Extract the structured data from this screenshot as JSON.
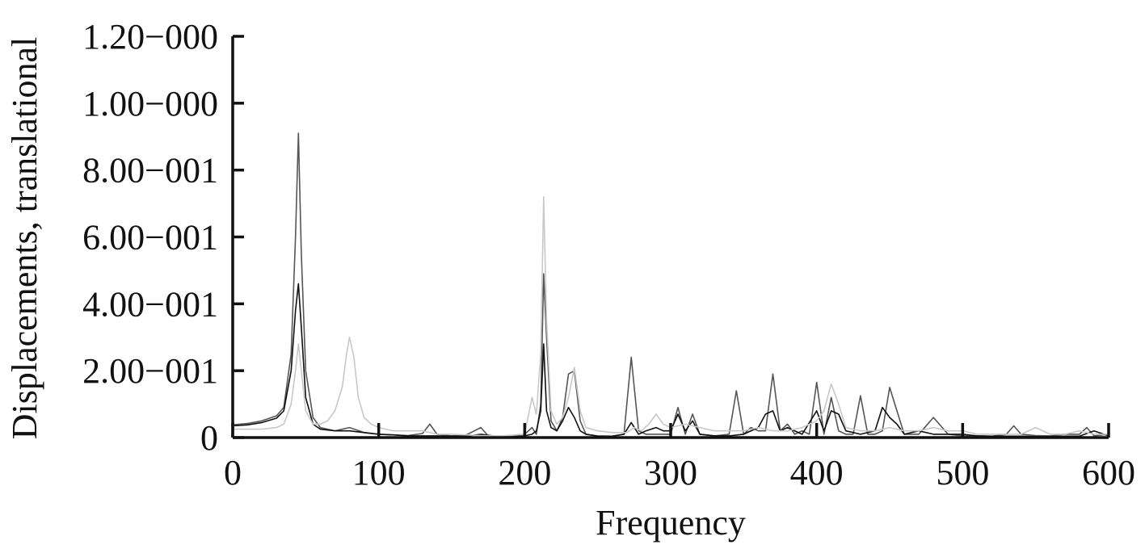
{
  "chart_data": {
    "type": "line",
    "title": "",
    "xlabel": "Frequency",
    "ylabel": "Displacements, translational",
    "xlim": [
      0,
      600
    ],
    "ylim": [
      0,
      1.2
    ],
    "grid": false,
    "x_ticks": [
      0,
      100,
      200,
      300,
      400,
      500,
      600
    ],
    "x_tick_labels": [
      "0",
      "100",
      "200",
      "300",
      "400",
      "500",
      "600"
    ],
    "y_ticks": [
      0,
      0.2,
      0.4,
      0.6,
      0.8,
      1.0,
      1.2
    ],
    "y_tick_labels": [
      "0",
      "2.00−001",
      "4.00−001",
      "6.00−001",
      "8.00−001",
      "1.00−000",
      "1.20−000"
    ],
    "series": [
      {
        "color": "#555555",
        "x": [
          0,
          10,
          20,
          30,
          35,
          40,
          43,
          45,
          47,
          50,
          55,
          60,
          70,
          80,
          90,
          100,
          110,
          120,
          130,
          135,
          140,
          150,
          160,
          170,
          175,
          180,
          190,
          200,
          205,
          208,
          211,
          213,
          215,
          218,
          222,
          226,
          230,
          234,
          238,
          242,
          250,
          260,
          268,
          273,
          278,
          283,
          290,
          295,
          300,
          305,
          310,
          315,
          320,
          330,
          340,
          345,
          350,
          355,
          360,
          365,
          370,
          375,
          380,
          385,
          390,
          395,
          400,
          405,
          410,
          415,
          420,
          425,
          430,
          435,
          440,
          445,
          450,
          455,
          460,
          470,
          480,
          490,
          500,
          510,
          520,
          530,
          535,
          540,
          550,
          560,
          570,
          580,
          585,
          590,
          600
        ],
        "y": [
          0.038,
          0.042,
          0.05,
          0.065,
          0.09,
          0.25,
          0.6,
          0.91,
          0.55,
          0.2,
          0.06,
          0.03,
          0.02,
          0.03,
          0.015,
          0.01,
          0.008,
          0.006,
          0.012,
          0.04,
          0.01,
          0.005,
          0.008,
          0.03,
          0.005,
          0.004,
          0.006,
          0.01,
          0.03,
          0.01,
          0.1,
          0.49,
          0.3,
          0.05,
          0.02,
          0.06,
          0.19,
          0.2,
          0.05,
          0.01,
          0.005,
          0.004,
          0.01,
          0.24,
          0.02,
          0.01,
          0.01,
          0.01,
          0.01,
          0.09,
          0.01,
          0.07,
          0.01,
          0.005,
          0.01,
          0.14,
          0.01,
          0.03,
          0.02,
          0.02,
          0.19,
          0.02,
          0.04,
          0.01,
          0.02,
          0.01,
          0.165,
          0.01,
          0.12,
          0.02,
          0.01,
          0.01,
          0.125,
          0.01,
          0.01,
          0.02,
          0.15,
          0.08,
          0.01,
          0.01,
          0.06,
          0.01,
          0.005,
          0.005,
          0.004,
          0.01,
          0.035,
          0.01,
          0.006,
          0.005,
          0.01,
          0.01,
          0.03,
          0.005,
          0.01
        ]
      },
      {
        "color": "#111111",
        "x": [
          0,
          10,
          20,
          30,
          35,
          40,
          43,
          45,
          47,
          50,
          55,
          60,
          70,
          80,
          90,
          100,
          110,
          120,
          130,
          140,
          150,
          160,
          170,
          180,
          190,
          200,
          205,
          208,
          211,
          213,
          215,
          218,
          222,
          226,
          230,
          234,
          238,
          242,
          250,
          260,
          268,
          273,
          278,
          283,
          290,
          295,
          300,
          305,
          310,
          315,
          320,
          330,
          340,
          350,
          360,
          365,
          370,
          375,
          380,
          390,
          400,
          405,
          410,
          415,
          420,
          430,
          440,
          445,
          450,
          455,
          460,
          470,
          480,
          490,
          500,
          510,
          520,
          530,
          540,
          550,
          560,
          570,
          580,
          590,
          600
        ],
        "y": [
          0.035,
          0.038,
          0.045,
          0.058,
          0.08,
          0.2,
          0.38,
          0.46,
          0.33,
          0.12,
          0.04,
          0.025,
          0.02,
          0.02,
          0.015,
          0.01,
          0.008,
          0.005,
          0.005,
          0.005,
          0.004,
          0.004,
          0.01,
          0.004,
          0.004,
          0.005,
          0.01,
          0.02,
          0.08,
          0.28,
          0.08,
          0.03,
          0.02,
          0.05,
          0.09,
          0.06,
          0.02,
          0.01,
          0.004,
          0.004,
          0.01,
          0.045,
          0.01,
          0.02,
          0.03,
          0.02,
          0.02,
          0.07,
          0.02,
          0.05,
          0.01,
          0.005,
          0.005,
          0.01,
          0.03,
          0.07,
          0.08,
          0.02,
          0.03,
          0.01,
          0.08,
          0.02,
          0.08,
          0.07,
          0.02,
          0.01,
          0.02,
          0.09,
          0.06,
          0.04,
          0.01,
          0.02,
          0.01,
          0.01,
          0.01,
          0.005,
          0.004,
          0.004,
          0.004,
          0.003,
          0.003,
          0.004,
          0.004,
          0.02,
          0.005
        ]
      },
      {
        "color": "#c8c8c8",
        "x": [
          0,
          10,
          20,
          30,
          35,
          40,
          43,
          45,
          47,
          50,
          55,
          60,
          65,
          70,
          75,
          78,
          80,
          83,
          86,
          90,
          95,
          100,
          110,
          120,
          130,
          140,
          150,
          160,
          170,
          180,
          190,
          200,
          205,
          208,
          211,
          213,
          215,
          218,
          222,
          226,
          230,
          234,
          238,
          242,
          250,
          260,
          270,
          275,
          280,
          285,
          290,
          295,
          300,
          310,
          320,
          330,
          340,
          350,
          360,
          370,
          380,
          390,
          400,
          405,
          410,
          415,
          420,
          430,
          440,
          450,
          460,
          470,
          480,
          490,
          500,
          510,
          520,
          530,
          540,
          550,
          560,
          570,
          580,
          590,
          600
        ],
        "y": [
          0.025,
          0.025,
          0.025,
          0.03,
          0.04,
          0.1,
          0.2,
          0.28,
          0.2,
          0.08,
          0.04,
          0.04,
          0.05,
          0.08,
          0.15,
          0.25,
          0.3,
          0.24,
          0.12,
          0.06,
          0.04,
          0.03,
          0.02,
          0.02,
          0.02,
          0.01,
          0.01,
          0.008,
          0.006,
          0.005,
          0.006,
          0.01,
          0.12,
          0.07,
          0.25,
          0.72,
          0.35,
          0.08,
          0.04,
          0.06,
          0.12,
          0.21,
          0.08,
          0.03,
          0.02,
          0.015,
          0.015,
          0.03,
          0.02,
          0.04,
          0.07,
          0.04,
          0.03,
          0.04,
          0.03,
          0.02,
          0.02,
          0.02,
          0.03,
          0.02,
          0.02,
          0.03,
          0.05,
          0.08,
          0.16,
          0.1,
          0.03,
          0.02,
          0.02,
          0.03,
          0.02,
          0.02,
          0.03,
          0.02,
          0.02,
          0.01,
          0.01,
          0.01,
          0.01,
          0.03,
          0.01,
          0.01,
          0.02,
          0.01,
          0.01
        ]
      }
    ]
  }
}
